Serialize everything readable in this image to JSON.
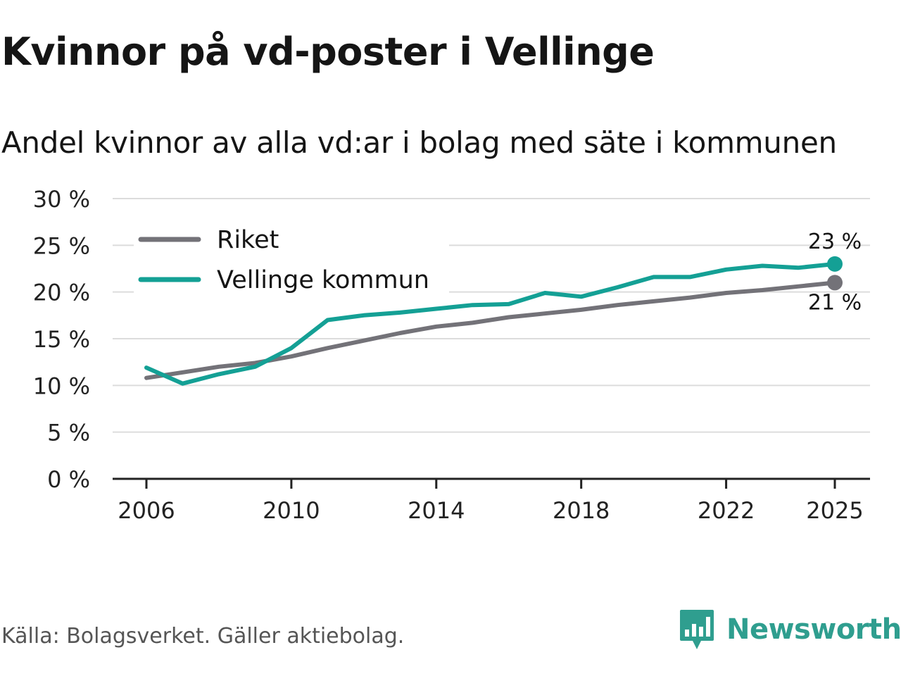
{
  "title": "Kvinnor på vd-poster i Vellinge",
  "subtitle": "Andel kvinnor av alla vd:ar i bolag med säte i kommunen",
  "source": "Källa: Bolagsverket. Gäller aktiebolag.",
  "brand": {
    "name": "Newsworthy",
    "logo_icon": "bar-chart-speech-bubble-icon",
    "color": "#2f9e8f"
  },
  "chart_data": {
    "type": "line",
    "title": "Kvinnor på vd-poster i Vellinge",
    "subtitle": "Andel kvinnor av alla vd:ar i bolag med säte i kommunen",
    "xlabel": "",
    "ylabel": "",
    "x": [
      2006,
      2007,
      2008,
      2009,
      2010,
      2011,
      2012,
      2013,
      2014,
      2015,
      2016,
      2017,
      2018,
      2019,
      2020,
      2021,
      2022,
      2023,
      2024,
      2025
    ],
    "xticks": [
      2006,
      2010,
      2014,
      2018,
      2022,
      2025
    ],
    "xtick_labels": [
      "2006",
      "2010",
      "2014",
      "2018",
      "2022",
      "2025"
    ],
    "ylim": [
      0,
      30
    ],
    "yticks": [
      0,
      5,
      10,
      15,
      20,
      25,
      30
    ],
    "ytick_labels": [
      "0 %",
      "5 %",
      "10 %",
      "15 %",
      "20 %",
      "25 %",
      "30 %"
    ],
    "grid": true,
    "legend_position": "top-left",
    "series": [
      {
        "name": "Riket",
        "color": "#737278",
        "values": [
          10.8,
          11.4,
          12.0,
          12.4,
          13.1,
          14.0,
          14.8,
          15.6,
          16.3,
          16.7,
          17.3,
          17.7,
          18.1,
          18.6,
          19.0,
          19.4,
          19.9,
          20.2,
          20.6,
          21.0
        ],
        "end_label": "21 %",
        "end_label_position": "below"
      },
      {
        "name": "Vellinge kommun",
        "color": "#14a095",
        "values": [
          11.9,
          10.2,
          11.2,
          12.0,
          14.0,
          17.0,
          17.5,
          17.8,
          18.2,
          18.6,
          18.7,
          19.9,
          19.5,
          20.5,
          21.6,
          21.6,
          22.4,
          22.8,
          22.6,
          23.0
        ],
        "end_label": "23 %",
        "end_label_position": "above"
      }
    ]
  }
}
